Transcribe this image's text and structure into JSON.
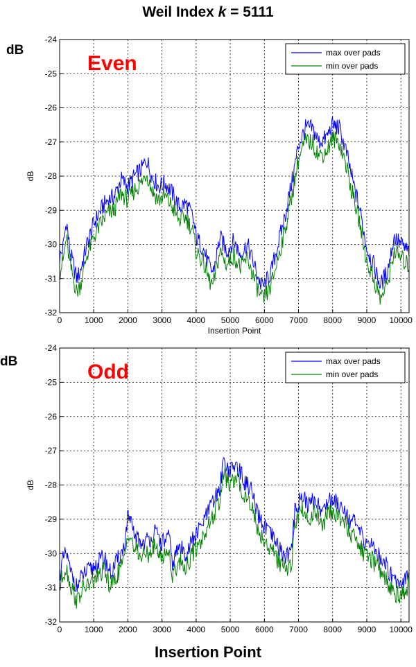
{
  "page": {
    "title_prefix": "Weil Index ",
    "title_k": "k",
    "title_suffix": " = 5111",
    "top_db_label": "dB",
    "bottom_db_label": "dB",
    "bottom_xlabel": "Insertion Point"
  },
  "colors": {
    "max": "#0000ff",
    "min": "#008000",
    "annotation": "#ff0000"
  },
  "chart_data": [
    {
      "type": "line",
      "annotation": "Even",
      "xlabel": "Insertion Point",
      "ylabel": "dB",
      "xlim": [
        0,
        10240
      ],
      "ylim": [
        -32,
        -24
      ],
      "xticks": [
        0,
        1000,
        2000,
        3000,
        4000,
        5000,
        6000,
        7000,
        8000,
        9000,
        10000
      ],
      "yticks": [
        -24,
        -25,
        -26,
        -27,
        -28,
        -29,
        -30,
        -31,
        -32
      ],
      "grid": true,
      "legend_position": "top-right",
      "x": [
        0,
        100,
        200,
        300,
        400,
        500,
        600,
        700,
        800,
        1000,
        1200,
        1400,
        1600,
        1800,
        2000,
        2200,
        2400,
        2550,
        2700,
        2900,
        3100,
        3300,
        3500,
        3700,
        3900,
        4000,
        4200,
        4400,
        4500,
        4700,
        4900,
        5100,
        5300,
        5500,
        5700,
        5900,
        6000,
        6200,
        6400,
        6600,
        6800,
        7000,
        7200,
        7400,
        7600,
        7800,
        8000,
        8200,
        8400,
        8600,
        8800,
        9000,
        9200,
        9400,
        9600,
        9800,
        10000,
        10200
      ],
      "series": [
        {
          "name": "max over pads",
          "values": [
            -30.4,
            -30.1,
            -29.3,
            -30.2,
            -30.6,
            -31.0,
            -30.8,
            -30.4,
            -30.0,
            -29.4,
            -29.0,
            -28.7,
            -28.6,
            -28.1,
            -28.3,
            -28.0,
            -27.8,
            -27.5,
            -28.0,
            -28.3,
            -28.2,
            -28.5,
            -28.9,
            -28.8,
            -29.2,
            -29.8,
            -30.1,
            -30.7,
            -30.8,
            -29.8,
            -30.2,
            -29.9,
            -30.3,
            -30.0,
            -30.6,
            -31.2,
            -31.2,
            -30.8,
            -30.0,
            -29.2,
            -28.2,
            -27.1,
            -26.6,
            -26.6,
            -27.0,
            -26.9,
            -26.5,
            -26.6,
            -27.3,
            -28.2,
            -29.0,
            -30.1,
            -30.6,
            -31.2,
            -30.8,
            -29.8,
            -30.0,
            -30.2
          ]
        },
        {
          "name": "min over pads",
          "values": [
            -30.8,
            -30.5,
            -29.8,
            -30.6,
            -31.0,
            -31.4,
            -31.2,
            -30.8,
            -30.3,
            -29.8,
            -29.4,
            -29.1,
            -29.0,
            -28.5,
            -28.7,
            -28.4,
            -28.2,
            -27.9,
            -28.4,
            -28.7,
            -28.6,
            -28.9,
            -29.3,
            -29.2,
            -29.6,
            -30.2,
            -30.5,
            -31.1,
            -31.2,
            -30.2,
            -30.6,
            -30.3,
            -30.7,
            -30.4,
            -31.0,
            -31.6,
            -31.6,
            -31.2,
            -30.4,
            -29.6,
            -28.6,
            -27.5,
            -27.0,
            -27.0,
            -27.4,
            -27.3,
            -26.9,
            -27.0,
            -27.7,
            -28.6,
            -29.4,
            -30.5,
            -31.0,
            -31.6,
            -31.2,
            -30.2,
            -30.4,
            -30.6
          ]
        }
      ]
    },
    {
      "type": "line",
      "annotation": "Odd",
      "xlabel": "",
      "ylabel": "dB",
      "xlim": [
        0,
        10240
      ],
      "ylim": [
        -32,
        -24
      ],
      "xticks": [
        0,
        1000,
        2000,
        3000,
        4000,
        5000,
        6000,
        7000,
        8000,
        9000,
        10000
      ],
      "yticks": [
        -24,
        -25,
        -26,
        -27,
        -28,
        -29,
        -30,
        -31,
        -32
      ],
      "grid": true,
      "legend_position": "top-right",
      "x": [
        0,
        100,
        200,
        300,
        400,
        500,
        700,
        900,
        1100,
        1300,
        1500,
        1700,
        1900,
        2000,
        2200,
        2400,
        2600,
        2800,
        3000,
        3200,
        3300,
        3500,
        3700,
        3900,
        4100,
        4300,
        4500,
        4700,
        4800,
        4900,
        5000,
        5100,
        5200,
        5400,
        5600,
        5800,
        6000,
        6200,
        6400,
        6600,
        6800,
        6900,
        7100,
        7300,
        7500,
        7700,
        7900,
        8100,
        8300,
        8500,
        8700,
        8900,
        9100,
        9300,
        9500,
        9700,
        9900,
        10100,
        10240
      ],
      "series": [
        {
          "name": "max over pads",
          "values": [
            -30.6,
            -30.2,
            -30.0,
            -30.5,
            -30.7,
            -31.0,
            -30.6,
            -30.5,
            -30.3,
            -30.1,
            -30.6,
            -30.2,
            -29.8,
            -28.9,
            -29.5,
            -29.7,
            -29.6,
            -29.4,
            -29.7,
            -29.5,
            -30.3,
            -29.8,
            -30.0,
            -29.6,
            -29.3,
            -28.9,
            -28.5,
            -28.1,
            -27.2,
            -27.5,
            -27.6,
            -27.5,
            -27.4,
            -27.9,
            -28.1,
            -28.9,
            -29.2,
            -29.5,
            -29.8,
            -30.1,
            -29.9,
            -28.7,
            -28.3,
            -28.6,
            -28.4,
            -28.8,
            -28.4,
            -28.5,
            -28.6,
            -29.0,
            -29.2,
            -29.6,
            -29.7,
            -30.0,
            -30.2,
            -30.6,
            -30.8,
            -30.8,
            -30.4
          ]
        },
        {
          "name": "min over pads",
          "values": [
            -31.0,
            -30.6,
            -30.4,
            -30.9,
            -31.1,
            -31.4,
            -31.0,
            -30.9,
            -30.7,
            -30.5,
            -31.0,
            -30.6,
            -30.2,
            -29.3,
            -29.9,
            -30.1,
            -30.0,
            -29.8,
            -30.1,
            -29.9,
            -30.7,
            -30.2,
            -30.4,
            -30.0,
            -29.7,
            -29.3,
            -28.9,
            -28.5,
            -27.6,
            -27.9,
            -28.0,
            -27.9,
            -27.8,
            -28.3,
            -28.5,
            -29.3,
            -29.6,
            -29.9,
            -30.2,
            -30.5,
            -30.3,
            -29.1,
            -28.7,
            -29.0,
            -28.8,
            -29.2,
            -28.8,
            -28.9,
            -29.0,
            -29.4,
            -29.6,
            -30.0,
            -30.1,
            -30.4,
            -30.6,
            -31.0,
            -31.2,
            -31.2,
            -30.8
          ]
        }
      ]
    }
  ]
}
